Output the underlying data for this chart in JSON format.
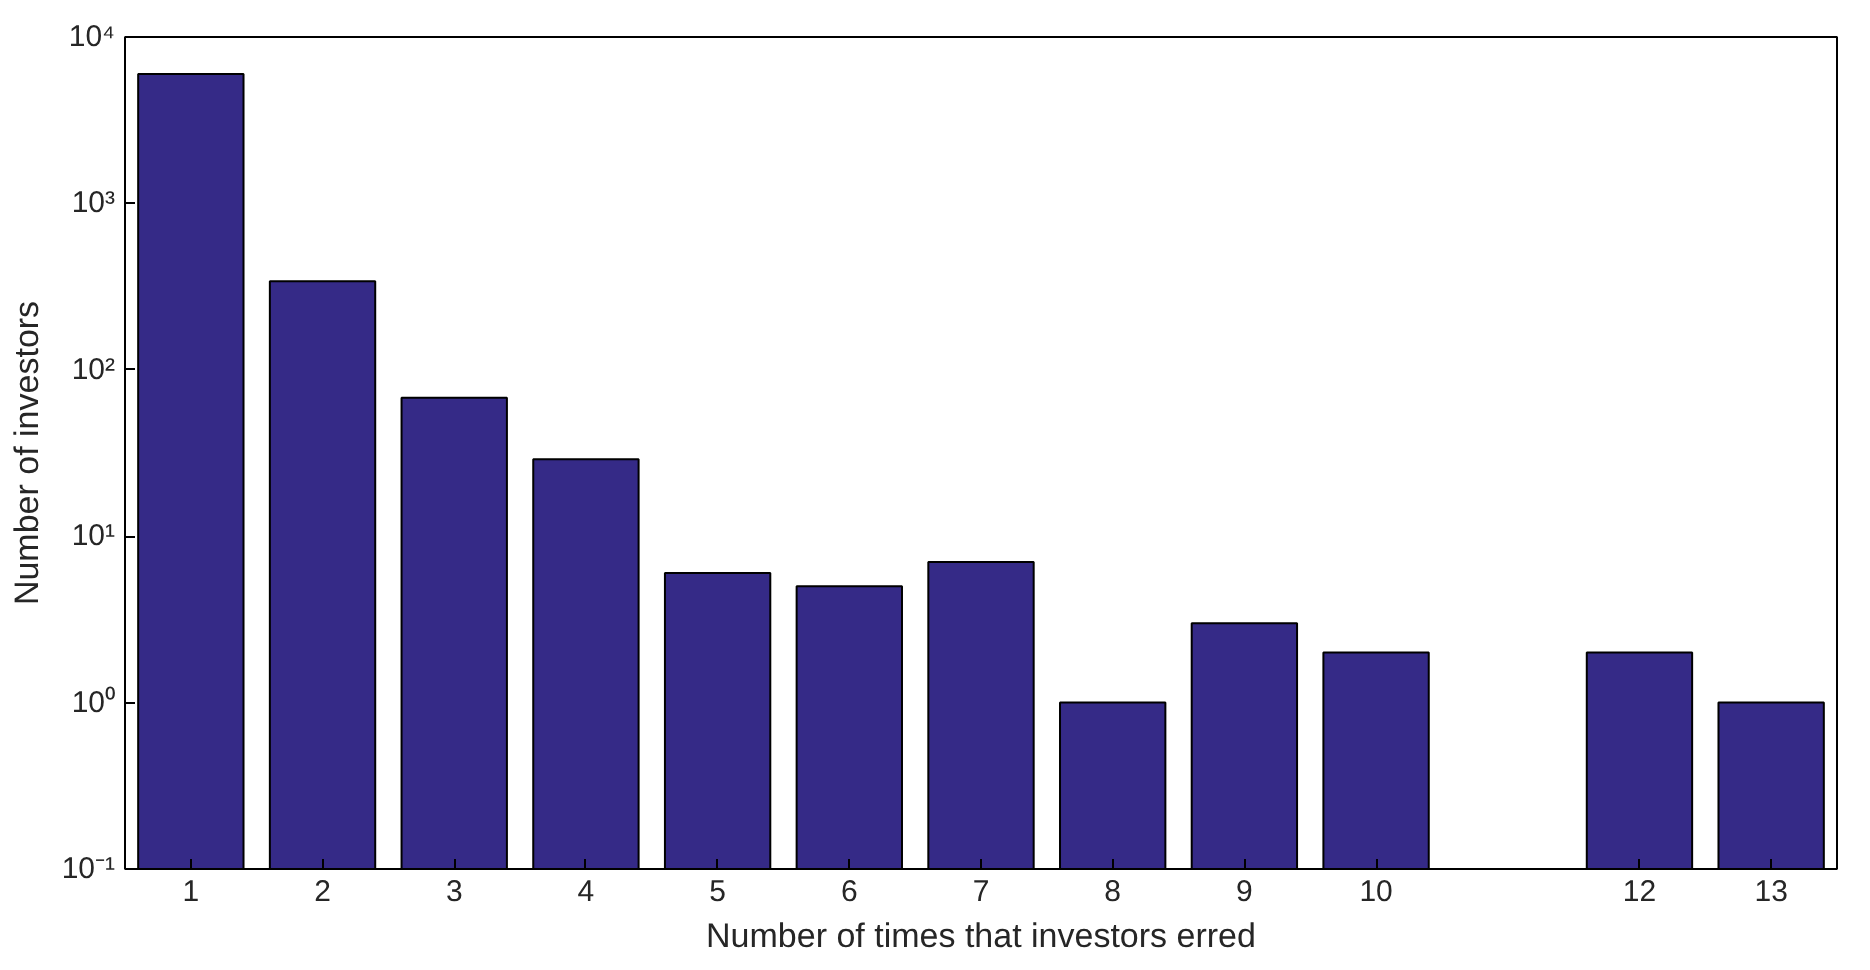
{
  "chart_data": {
    "type": "bar",
    "xlabel": "Number of times that investors erred",
    "ylabel": "Number of investors",
    "x": [
      1,
      2,
      3,
      4,
      5,
      6,
      7,
      8,
      9,
      10,
      11,
      12,
      13
    ],
    "values": [
      6000,
      340,
      68,
      29,
      6,
      5,
      7,
      1,
      3,
      2,
      null,
      2,
      1
    ],
    "color": "#352a87",
    "log": true,
    "xlim": [
      0.5,
      13.5
    ],
    "xticks": [
      1,
      2,
      3,
      4,
      5,
      6,
      7,
      8,
      9,
      10,
      12,
      13
    ],
    "ylim": [
      0.1,
      10000
    ],
    "yticks": [
      {
        "value": 0.1,
        "label": "10⁻¹"
      },
      {
        "value": 1,
        "label": "10⁰"
      },
      {
        "value": 10,
        "label": "10¹"
      },
      {
        "value": 100,
        "label": "10²"
      },
      {
        "value": 1000,
        "label": "10³"
      },
      {
        "value": 10000,
        "label": "10⁴"
      }
    ],
    "grid": false
  }
}
